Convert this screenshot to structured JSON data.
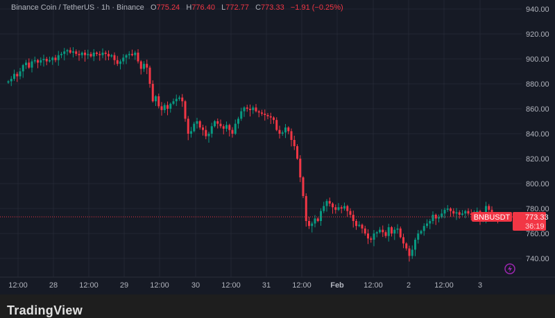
{
  "header": {
    "symbol_title": "Binance Coin / TetherUS · 1h · Binance",
    "open_label": "O",
    "open": "775.24",
    "high_label": "H",
    "high": "776.40",
    "low_label": "L",
    "low": "772.77",
    "close_label": "C",
    "close": "773.33",
    "change": "−1.91 (−0.25%)"
  },
  "price_tag": {
    "symbol": "BNBUSDT",
    "price": "773.33",
    "countdown": "36:19"
  },
  "brand": "TradingView",
  "colors": {
    "up": "#089981",
    "down": "#f23645",
    "background": "#161a25",
    "grid": "#232733",
    "axis_text": "#b2b5be",
    "alert_icon": "#9c27b0"
  },
  "icons": {
    "alert": "lightning-alert-icon"
  },
  "chart_data": {
    "type": "candlestick",
    "interval": "1h",
    "ylim": [
      730,
      945
    ],
    "grid": true,
    "y_ticks": [
      "940.00",
      "920.00",
      "900.00",
      "880.00",
      "860.00",
      "840.00",
      "820.00",
      "800.00",
      "780.00",
      "760.00",
      "740.00"
    ],
    "x_ticks": [
      "12:00",
      "28",
      "12:00",
      "29",
      "12:00",
      "30",
      "12:00",
      "31",
      "12:00",
      "Feb",
      "12:00",
      "2",
      "12:00",
      "3"
    ],
    "first_open": 881,
    "close": [
      882,
      884,
      888,
      886,
      890,
      895,
      897,
      893,
      898,
      899,
      897,
      899,
      900,
      898,
      899,
      901,
      899,
      903,
      904,
      906,
      907,
      905,
      906,
      904,
      903,
      905,
      903,
      904,
      902,
      905,
      904,
      903,
      905,
      904,
      902,
      903,
      899,
      896,
      898,
      901,
      903,
      904,
      903,
      905,
      898,
      892,
      896,
      893,
      880,
      866,
      870,
      862,
      859,
      863,
      860,
      864,
      866,
      868,
      869,
      866,
      852,
      840,
      842,
      848,
      850,
      845,
      843,
      838,
      840,
      846,
      850,
      848,
      846,
      844,
      847,
      843,
      840,
      848,
      852,
      858,
      861,
      860,
      859,
      861,
      858,
      857,
      856,
      855,
      854,
      853,
      851,
      843,
      840,
      841,
      845,
      842,
      835,
      830,
      820,
      805,
      790,
      770,
      766,
      768,
      772,
      770,
      778,
      782,
      786,
      784,
      781,
      779,
      781,
      780,
      782,
      778,
      775,
      770,
      766,
      767,
      764,
      760,
      756,
      755,
      760,
      761,
      763,
      761,
      758,
      765,
      760,
      763,
      764,
      757,
      752,
      748,
      742,
      747,
      755,
      760,
      762,
      766,
      768,
      770,
      775,
      772,
      773,
      776,
      779,
      780,
      778,
      776,
      777,
      775,
      776,
      778,
      776,
      775,
      777,
      778,
      770,
      772,
      782,
      779,
      775,
      774,
      773.33
    ],
    "extreme_wicks": {
      "low_min": 728,
      "high_max": 910
    }
  }
}
